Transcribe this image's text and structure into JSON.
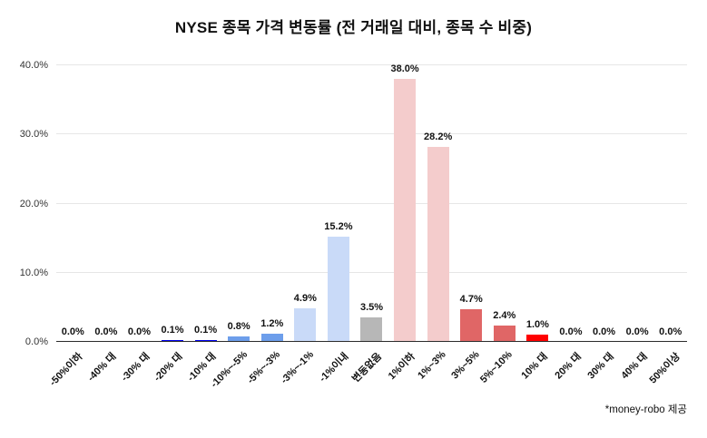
{
  "footnote": "*money-robo 제공",
  "chart_data": {
    "type": "bar",
    "title": "NYSE 종목 가격 변동률 (전 거래일 대비,  종목 수 비중)",
    "xlabel": "",
    "ylabel": "",
    "ylim": [
      0,
      40
    ],
    "grid": true,
    "legend": "none",
    "yticks": [
      {
        "value": 0,
        "label": "0.0%"
      },
      {
        "value": 10,
        "label": "10.0%"
      },
      {
        "value": 20,
        "label": "20.0%"
      },
      {
        "value": 30,
        "label": "30.0%"
      },
      {
        "value": 40,
        "label": "40.0%"
      }
    ],
    "categories": [
      "-50%이하",
      "-40% 대",
      "-30% 대",
      "-20% 대",
      "-10% 대",
      "-10%~-5%",
      "-5%~-3%",
      "-3%~-1%",
      "-1%이내",
      "변동없음",
      "1%이하",
      "1%~3%",
      "3%~5%",
      "5%~10%",
      "10% 대",
      "20% 대",
      "30% 대",
      "40% 대",
      "50%이상"
    ],
    "values": [
      0.0,
      0.0,
      0.0,
      0.1,
      0.1,
      0.8,
      1.2,
      4.9,
      15.2,
      3.5,
      38.0,
      28.2,
      4.7,
      2.4,
      1.0,
      0.0,
      0.0,
      0.0,
      0.0
    ],
    "value_labels": [
      "0.0%",
      "0.0%",
      "0.0%",
      "0.1%",
      "0.1%",
      "0.8%",
      "1.2%",
      "4.9%",
      "15.2%",
      "3.5%",
      "38.0%",
      "28.2%",
      "4.7%",
      "2.4%",
      "1.0%",
      "0.0%",
      "0.0%",
      "0.0%",
      "0.0%"
    ],
    "bar_colors": [
      "#0000ee",
      "#0000ee",
      "#0000ee",
      "#0000ee",
      "#0000ee",
      "#6d9eeb",
      "#6d9eeb",
      "#c9daf8",
      "#c9daf8",
      "#b7b7b7",
      "#f4cccc",
      "#f4cccc",
      "#e06666",
      "#e06666",
      "#ff0000",
      "#ff0000",
      "#ff0000",
      "#ff0000",
      "#ff0000"
    ],
    "colors": {
      "grid": "#e6e6e6",
      "axis_line": "#2b2b2b",
      "label_text": "#111111"
    }
  }
}
